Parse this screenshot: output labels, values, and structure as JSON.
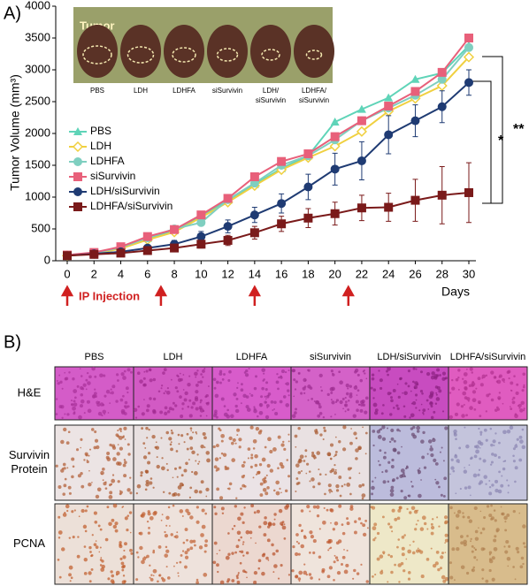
{
  "panel_a": {
    "label": "A)",
    "photo": {
      "tumor_label": "Tumor",
      "labels": [
        [
          "PBS"
        ],
        [
          "LDH"
        ],
        [
          "LDHFA"
        ],
        [
          "siSurvivin"
        ],
        [
          "LDH/",
          "siSurvivin"
        ],
        [
          "LDHFA/",
          "siSurvivin"
        ]
      ]
    },
    "significance": [
      "**",
      "*"
    ]
  },
  "chart_data": {
    "type": "line",
    "y_label": "Tumor Volume (mm³)",
    "x_label": "Days",
    "injection_label": "IP Injection",
    "injection_days": [
      0,
      7,
      14,
      21
    ],
    "x": [
      0,
      2,
      4,
      6,
      8,
      10,
      12,
      14,
      16,
      18,
      20,
      22,
      24,
      26,
      28,
      30
    ],
    "xlim": [
      0,
      30
    ],
    "xticks": [
      0,
      2,
      4,
      6,
      8,
      10,
      12,
      14,
      16,
      18,
      20,
      22,
      24,
      26,
      28,
      30
    ],
    "ylim": [
      0,
      4000
    ],
    "yticks": [
      0,
      500,
      1000,
      1500,
      2000,
      2500,
      3000,
      3500,
      4000
    ],
    "series": [
      {
        "name": "PBS",
        "color": "#5fd4b8",
        "marker": "triangle",
        "values": [
          80,
          120,
          200,
          350,
          480,
          700,
          950,
          1200,
          1450,
          1650,
          2180,
          2380,
          2560,
          2850,
          2950,
          3380
        ]
      },
      {
        "name": "LDH",
        "color": "#f0d040",
        "marker": "diamond",
        "values": [
          80,
          110,
          190,
          330,
          450,
          680,
          920,
          1180,
          1430,
          1620,
          1800,
          2030,
          2350,
          2550,
          2750,
          3200
        ]
      },
      {
        "name": "LDHFA",
        "color": "#7fcfc0",
        "marker": "circle",
        "values": [
          80,
          120,
          210,
          360,
          500,
          600,
          960,
          1220,
          1500,
          1650,
          1900,
          2200,
          2400,
          2600,
          2850,
          3350
        ]
      },
      {
        "name": "siSurvivin",
        "color": "#e8607a",
        "marker": "square",
        "values": [
          90,
          130,
          220,
          380,
          490,
          720,
          980,
          1320,
          1560,
          1680,
          1950,
          2200,
          2430,
          2660,
          2960,
          3500
        ]
      },
      {
        "name": "LDH/siSurvivin",
        "color": "#1f3b73",
        "marker": "circle",
        "values": [
          80,
          110,
          140,
          200,
          260,
          380,
          540,
          720,
          900,
          1160,
          1440,
          1570,
          1980,
          2200,
          2420,
          2800
        ],
        "errors": [
          20,
          30,
          40,
          50,
          60,
          80,
          100,
          120,
          150,
          200,
          250,
          300,
          300,
          250,
          250,
          200
        ]
      },
      {
        "name": "LDHFA/siSurvivin",
        "color": "#7a1a1a",
        "marker": "square",
        "values": [
          80,
          100,
          120,
          160,
          200,
          260,
          320,
          440,
          580,
          670,
          740,
          830,
          840,
          950,
          1030,
          1070
        ],
        "errors": [
          20,
          20,
          30,
          40,
          50,
          60,
          80,
          100,
          120,
          150,
          180,
          200,
          220,
          330,
          450,
          470
        ]
      }
    ]
  },
  "panel_b": {
    "label": "B)",
    "columns": [
      "PBS",
      "LDH",
      "LDHFA",
      "siSurvivin",
      "LDH/siSurvivin",
      "LDHFA/siSurvivin"
    ],
    "rows": [
      [
        "H&E"
      ],
      [
        "Survivin",
        "Protein"
      ],
      [
        "PCNA"
      ]
    ]
  }
}
